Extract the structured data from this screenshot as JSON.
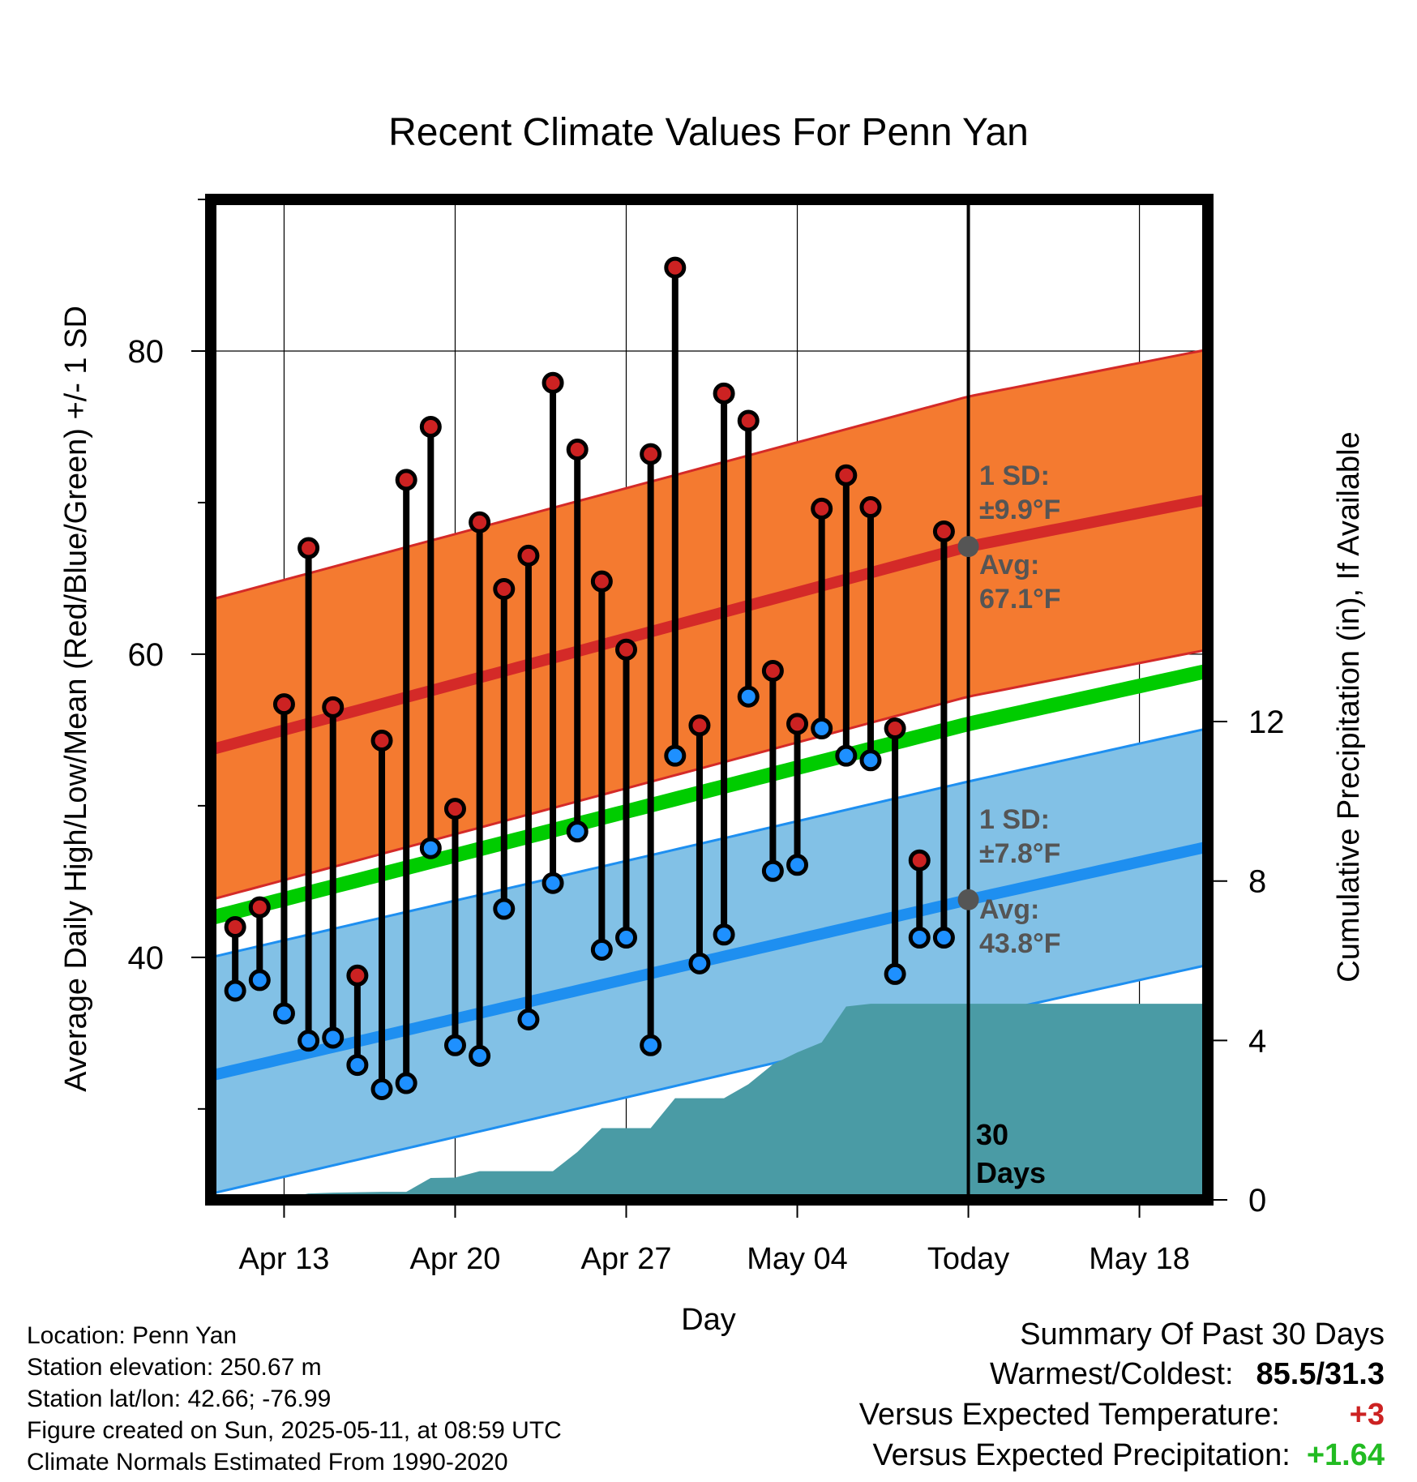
{
  "title": "Recent Climate Values For Penn Yan",
  "y_left_label": "Average Daily High/Low/Mean (Red/Blue/Green) +/- 1 SD",
  "y_right_label": "Cumulative Precipitation (in), If Available",
  "x_label": "Day",
  "annotations": {
    "high_sd_line1": "1 SD:",
    "high_sd_line2": "±9.9°F",
    "high_avg_line1": "Avg:",
    "high_avg_line2": "67.1°F",
    "low_sd_line1": "1 SD:",
    "low_sd_line2": "±7.8°F",
    "low_avg_line1": "Avg:",
    "low_avg_line2": "43.8°F",
    "days_line1": "30",
    "days_line2": "Days"
  },
  "info": {
    "location": "Location: Penn Yan",
    "elevation": "Station elevation: 250.67 m",
    "latlon": "Station lat/lon: 42.66; -76.99",
    "created": "Figure created on Sun, 2025-05-11, at 08:59 UTC",
    "normals": "Climate Normals Estimated From 1990-2020"
  },
  "summary": {
    "title": "Summary Of Past 30 Days",
    "warm_cold_label": "Warmest/Coldest:",
    "warm_cold_value": "85.5/31.3",
    "temp_label": "Versus Expected Temperature:",
    "temp_value": "+3",
    "precip_label": "Versus Expected Precipitation:",
    "precip_value": "+1.64"
  },
  "colors": {
    "high_band": "#f47a30",
    "high_line": "#d42a28",
    "low_band": "#82c1e6",
    "low_line": "#1e8ff0",
    "mean_line": "#00cc00",
    "precip": "#4a9ba5",
    "high_dot": "#cc2222",
    "low_dot": "#1e90ff",
    "avg_marker": "#555555",
    "temp_delta": "#cc2222",
    "precip_delta": "#22bb22"
  },
  "chart_data": {
    "type": "line",
    "x_start": "Apr 10",
    "x_ticks": [
      "Apr 13",
      "Apr 20",
      "Apr 27",
      "May 04",
      "Today",
      "May 18"
    ],
    "x_tick_days": [
      3,
      10,
      17,
      24,
      31,
      38
    ],
    "today_day": 31,
    "y_left_ticks": [
      40,
      60,
      80
    ],
    "y_left_range": [
      24,
      90
    ],
    "y_right_ticks": [
      0,
      4,
      8,
      12
    ],
    "y_right_range": [
      0,
      25.1
    ],
    "grid": true,
    "daily_highs": [
      42,
      43.3,
      56.7,
      67,
      56.5,
      38.8,
      54.3,
      71.5,
      75,
      49.8,
      68.7,
      64.3,
      66.5,
      77.9,
      73.5,
      64.8,
      60.3,
      73.2,
      85.5,
      55.3,
      77.2,
      75.4,
      58.9,
      55.4,
      69.6,
      71.8,
      69.7,
      55.1,
      46.4,
      68.1
    ],
    "daily_lows": [
      37.8,
      38.5,
      36.3,
      34.5,
      34.7,
      32.9,
      31.3,
      31.7,
      47.2,
      34.2,
      33.5,
      43.2,
      35.9,
      44.9,
      48.3,
      40.5,
      41.3,
      34.2,
      53.3,
      39.6,
      41.5,
      57.2,
      45.7,
      46.1,
      55.1,
      53.3,
      53,
      38.9,
      41.3,
      41.3
    ],
    "normal_high": {
      "days": [
        0,
        31,
        40.8
      ],
      "values": [
        53.7,
        67.1,
        70.2
      ]
    },
    "normal_high_sd": 9.9,
    "normal_low": {
      "days": [
        0,
        31,
        40.8
      ],
      "values": [
        32.2,
        43.8,
        47.3
      ]
    },
    "normal_low_sd": 7.8,
    "normal_mean": {
      "days": [
        0,
        31,
        40.8
      ],
      "values": [
        42.6,
        55.4,
        58.9
      ]
    },
    "cumulative_precip": {
      "days": [
        0,
        1,
        2,
        3,
        4,
        5,
        6,
        7,
        8,
        9,
        10,
        11,
        12,
        13,
        14,
        15,
        16,
        17,
        18,
        19,
        20,
        21,
        22,
        23,
        24,
        25,
        26,
        27,
        28,
        29,
        30,
        31,
        40.8
      ],
      "values": [
        0,
        0,
        0.02,
        0.04,
        0.16,
        0.18,
        0.19,
        0.2,
        0.2,
        0.55,
        0.56,
        0.72,
        0.72,
        0.72,
        0.72,
        1.2,
        1.8,
        1.8,
        1.8,
        2.55,
        2.55,
        2.55,
        2.9,
        3.4,
        3.7,
        3.95,
        4.85,
        4.92,
        4.92,
        4.92,
        4.92,
        4.92,
        4.92
      ]
    }
  }
}
